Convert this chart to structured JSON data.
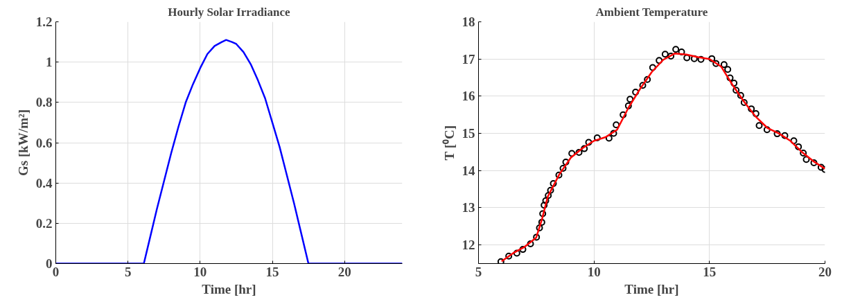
{
  "chart_data": [
    {
      "type": "line",
      "title": "Hourly Solar Irradiance",
      "xlabel": "Time [hr]",
      "ylabel": "Gs [kW/m²]",
      "xlim": [
        0,
        24
      ],
      "xticks": [
        0,
        5,
        10,
        15,
        20
      ],
      "ylim": [
        0,
        1.2
      ],
      "yticks": [
        0,
        0.2,
        0.4,
        0.6,
        0.8,
        1,
        1.2
      ],
      "grid": true,
      "series": [
        {
          "color": "#0000ff",
          "x": [
            0,
            6.1,
            6.5,
            7,
            7.5,
            8,
            8.5,
            9,
            9.5,
            10,
            10.5,
            11,
            11.5,
            11.8,
            12.2,
            12.5,
            13,
            13.5,
            14,
            14.5,
            15,
            15.5,
            16,
            16.5,
            17,
            17.5,
            24
          ],
          "values": [
            0,
            0,
            0.12,
            0.27,
            0.41,
            0.55,
            0.68,
            0.8,
            0.89,
            0.97,
            1.04,
            1.08,
            1.1,
            1.11,
            1.1,
            1.09,
            1.05,
            0.99,
            0.91,
            0.82,
            0.7,
            0.58,
            0.44,
            0.3,
            0.15,
            0,
            0
          ]
        }
      ]
    },
    {
      "type": "scatter",
      "title": "Ambient Temperature",
      "xlabel": "Time [hr]",
      "ylabel": "T [⁰C]",
      "xlim": [
        5,
        20
      ],
      "xticks": [
        5,
        10,
        15,
        20
      ],
      "ylim": [
        11.5,
        18
      ],
      "yticks": [
        12,
        13,
        14,
        15,
        16,
        17,
        18
      ],
      "grid": true,
      "series": [
        {
          "type": "scatter",
          "marker": "circle",
          "color": "#000000",
          "x": [
            5.97,
            6.31,
            6.66,
            6.92,
            7.25,
            7.51,
            7.64,
            7.74,
            7.78,
            7.84,
            7.91,
            8.02,
            8.12,
            8.24,
            8.48,
            8.66,
            8.78,
            9.04,
            9.35,
            9.58,
            9.77,
            10.14,
            10.65,
            10.85,
            10.96,
            11.26,
            11.49,
            11.56,
            11.8,
            12.11,
            12.31,
            12.54,
            12.82,
            13.08,
            13.33,
            13.54,
            13.79,
            14.02,
            14.34,
            14.63,
            15.1,
            15.28,
            15.63,
            15.79,
            15.89,
            16.06,
            16.15,
            16.35,
            16.5,
            16.81,
            17.01,
            17.15,
            17.49,
            17.93,
            18.26,
            18.65,
            18.85,
            19.06,
            19.19,
            19.52,
            19.83,
            20
          ],
          "values": [
            11.55,
            11.7,
            11.78,
            11.88,
            12.03,
            12.21,
            12.46,
            12.61,
            12.84,
            13.07,
            13.19,
            13.33,
            13.47,
            13.65,
            13.88,
            14.06,
            14.23,
            14.46,
            14.49,
            14.59,
            14.76,
            14.88,
            14.87,
            15.0,
            15.23,
            15.5,
            15.74,
            15.92,
            16.11,
            16.29,
            16.45,
            16.77,
            16.96,
            17.13,
            17.08,
            17.26,
            17.19,
            17.03,
            17.01,
            16.99,
            17.01,
            16.88,
            16.85,
            16.72,
            16.49,
            16.35,
            16.16,
            16.02,
            15.83,
            15.66,
            15.53,
            15.21,
            15.1,
            14.99,
            14.94,
            14.8,
            14.64,
            14.47,
            14.3,
            14.21,
            14.09,
            14.03
          ]
        },
        {
          "type": "line",
          "color": "#ff0000",
          "x": [
            6,
            6.5,
            7,
            7.5,
            7.75,
            8,
            8.5,
            9,
            9.5,
            10,
            10.5,
            11,
            11.5,
            12,
            12.5,
            13,
            13.5,
            14,
            14.5,
            15,
            15.5,
            16,
            16.5,
            17,
            17.5,
            18,
            18.5,
            19,
            19.5,
            20
          ],
          "values": [
            11.56,
            11.78,
            11.95,
            12.2,
            12.7,
            13.3,
            13.9,
            14.35,
            14.6,
            14.8,
            14.9,
            15.1,
            15.7,
            16.2,
            16.65,
            16.98,
            17.15,
            17.12,
            17.05,
            17.0,
            16.8,
            16.3,
            15.85,
            15.45,
            15.15,
            15.0,
            14.8,
            14.5,
            14.25,
            14.05
          ]
        }
      ]
    }
  ]
}
